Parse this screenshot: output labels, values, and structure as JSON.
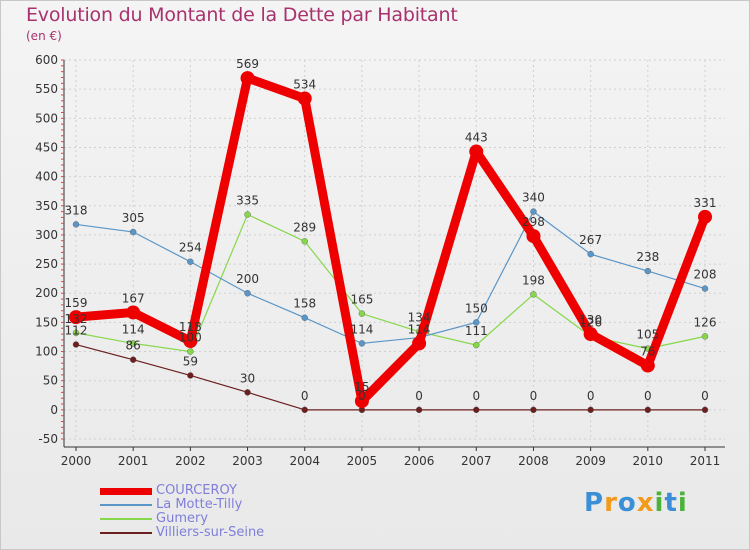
{
  "chart_data": {
    "type": "line",
    "title": "Evolution du Montant de la Dette par Habitant",
    "subtitle": "(en €)",
    "xlabel": "",
    "ylabel": "",
    "ylim": [
      -50,
      600
    ],
    "yticks": [
      -50,
      0,
      50,
      100,
      150,
      200,
      250,
      300,
      350,
      400,
      450,
      500,
      550,
      600
    ],
    "categories": [
      "2000",
      "2001",
      "2002",
      "2003",
      "2004",
      "2005",
      "2006",
      "2007",
      "2008",
      "2009",
      "2010",
      "2011"
    ],
    "grid": true,
    "legend_position": "bottom-left",
    "series": [
      {
        "name": "Villiers-sur-Seine",
        "color": "#6b1f1f",
        "values": [
          112,
          86,
          59,
          30,
          0,
          0,
          0,
          0,
          0,
          0,
          0,
          0
        ]
      },
      {
        "name": "Gumery",
        "color": "#86d84a",
        "values": [
          132,
          114,
          100,
          335,
          289,
          165,
          134,
          111,
          198,
          126,
          105,
          126
        ]
      },
      {
        "name": "La Motte-Tilly",
        "color": "#5a96c8",
        "values": [
          318,
          305,
          254,
          200,
          158,
          114,
          124,
          150,
          340,
          267,
          238,
          208
        ]
      },
      {
        "name": "COURCEROY",
        "color": "#ee0000",
        "values": [
          159,
          167,
          118,
          569,
          534,
          15,
          114,
          443,
          298,
          130,
          76,
          331
        ]
      }
    ],
    "point_labels": [
      {
        "series": "La Motte-Tilly",
        "values": [
          "318",
          "305",
          "254",
          "200",
          "158",
          "114",
          "",
          "150",
          "340",
          "267",
          "238",
          "208"
        ]
      },
      {
        "series": "Gumery",
        "values": [
          "132",
          "114",
          "100",
          "335",
          "289",
          "165",
          "134",
          "111",
          "198",
          "126",
          "105",
          "126"
        ]
      },
      {
        "series": "Villiers-sur-Seine",
        "values": [
          "112",
          "86",
          "59",
          "30",
          "0",
          "0",
          "0",
          "0",
          "0",
          "0",
          "0",
          "0"
        ]
      },
      {
        "series": "COURCEROY",
        "values": [
          "159",
          "167",
          "118",
          "569",
          "534",
          "15",
          "114",
          "443",
          "298",
          "130",
          "76",
          "331"
        ]
      }
    ]
  },
  "legend": {
    "items": [
      {
        "label": "COURCEROY",
        "color": "#ee0000"
      },
      {
        "label": "La Motte-Tilly",
        "color": "#5a96c8"
      },
      {
        "label": "Gumery",
        "color": "#86d84a"
      },
      {
        "label": "Villiers-sur-Seine",
        "color": "#6b1f1f"
      }
    ]
  },
  "brand": {
    "text": "Proxiti",
    "letter_colors": [
      "#3a8fd6",
      "#f29a1a",
      "#3a8fd6",
      "#f29a1a",
      "#4bb33a",
      "#3a8fd6",
      "#4bb33a"
    ]
  }
}
